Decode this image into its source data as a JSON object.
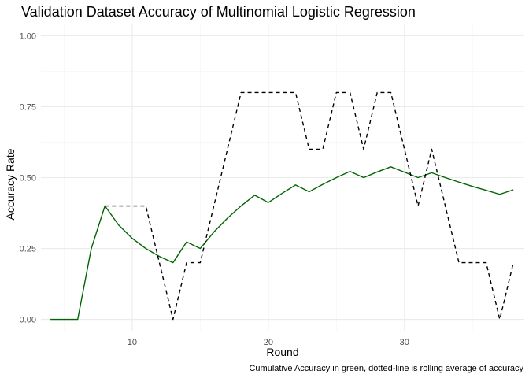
{
  "chart_data": {
    "type": "line",
    "title": "Validation Dataset Accuracy of Multinomial Logistic Regression",
    "xlabel": "Round",
    "ylabel": "Accuracy Rate",
    "caption": "Cumulative Accuracy in green, dotted-line is rolling average of accuracy",
    "xlim": [
      3.3,
      38.8
    ],
    "ylim": [
      -0.04,
      1.04
    ],
    "x_ticks": [
      10,
      20,
      30
    ],
    "y_ticks": [
      0.0,
      0.25,
      0.5,
      0.75,
      1.0
    ],
    "y_tick_labels": [
      "0.00",
      "0.25",
      "0.50",
      "0.75",
      "1.00"
    ],
    "grid": true,
    "series": [
      {
        "color": "#006400",
        "line_style": "solid",
        "x": [
          4,
          5,
          6,
          7,
          8,
          9,
          10,
          11,
          12,
          13,
          14,
          15,
          16,
          17,
          18,
          19,
          20,
          21,
          22,
          23,
          24,
          25,
          26,
          27,
          28,
          29,
          30,
          31,
          32,
          33,
          34,
          35,
          36,
          37,
          38
        ],
        "values": [
          0,
          0,
          0,
          0.25,
          0.4,
          0.333,
          0.286,
          0.25,
          0.222,
          0.2,
          0.273,
          0.25,
          0.308,
          0.357,
          0.4,
          0.438,
          0.412,
          0.444,
          0.474,
          0.45,
          0.476,
          0.5,
          0.522,
          0.5,
          0.52,
          0.538,
          0.519,
          0.5,
          0.517,
          0.5,
          0.484,
          0.469,
          0.455,
          0.441,
          0.457
        ]
      },
      {
        "color": "#000000",
        "line_style": "dashed",
        "x": [
          8,
          9,
          10,
          11,
          12,
          13,
          14,
          15,
          16,
          17,
          18,
          19,
          20,
          21,
          22,
          23,
          24,
          25,
          26,
          27,
          28,
          29,
          30,
          31,
          32,
          33,
          34,
          35,
          36,
          37,
          38
        ],
        "values": [
          0.4,
          0.4,
          0.4,
          0.4,
          0.2,
          0.0,
          0.2,
          0.2,
          0.4,
          0.6,
          0.8,
          0.8,
          0.8,
          0.8,
          0.8,
          0.6,
          0.6,
          0.8,
          0.8,
          0.6,
          0.8,
          0.8,
          0.6,
          0.4,
          0.6,
          0.4,
          0.2,
          0.2,
          0.2,
          0.0,
          0.2
        ]
      }
    ]
  },
  "colors": {
    "background": "#ffffff",
    "grid_major": "#ebebeb",
    "grid_minor": "#f5f5f5"
  }
}
